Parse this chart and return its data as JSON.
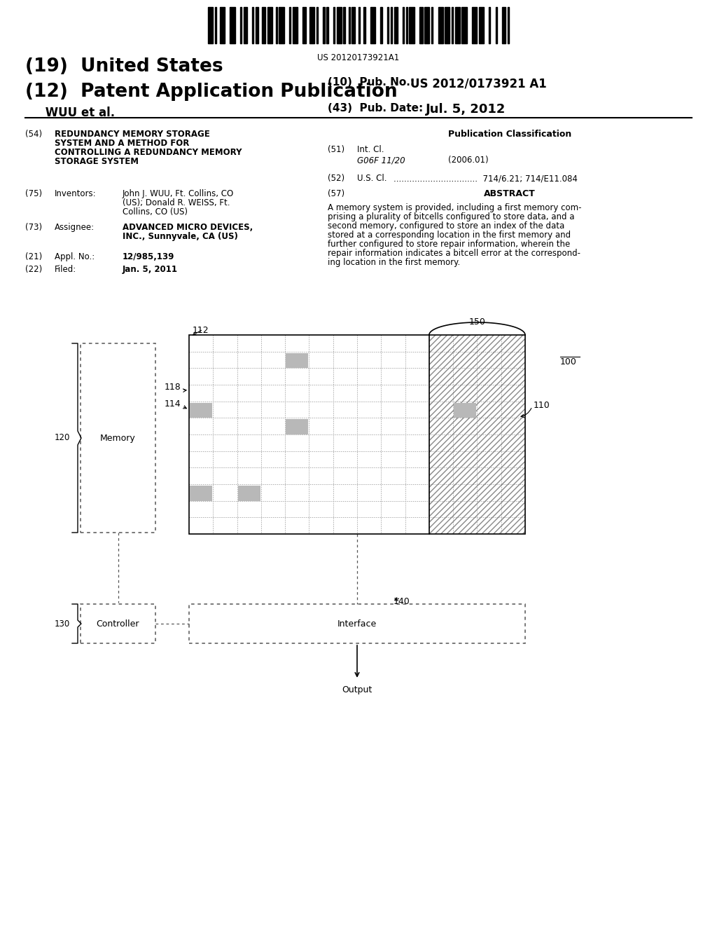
{
  "bg_color": "#ffffff",
  "barcode_text": "US 20120173921A1",
  "title_19": "(19)  United States",
  "title_12": "(12)  Patent Application Publication",
  "pub_no_label": "(10)  Pub. No.:",
  "pub_no_val": "US 2012/0173921 A1",
  "inventors_label": "     WUU et al.",
  "pub_date_label": "(43)  Pub. Date:",
  "pub_date_val": "Jul. 5, 2012",
  "field54_label": "(54)",
  "field54_lines": [
    "REDUNDANCY MEMORY STORAGE",
    "SYSTEM AND A METHOD FOR",
    "CONTROLLING A REDUNDANCY MEMORY",
    "STORAGE SYSTEM"
  ],
  "pub_class_title": "Publication Classification",
  "field51_label": "(51)",
  "field51_name": "Int. Cl.",
  "field51_code": "G06F 11/20",
  "field51_year": "(2006.01)",
  "field52_label": "(52)",
  "field52_name": "U.S. Cl.",
  "field52_dots": "................................",
  "field52_val": "714/6.21; 714/E11.084",
  "field57_label": "(57)",
  "field57_name": "ABSTRACT",
  "abstract_lines": [
    "A memory system is provided, including a first memory com-",
    "prising a plurality of bitcells configured to store data, and a",
    "second memory, configured to store an index of the data",
    "stored at a corresponding location in the first memory and",
    "further configured to store repair information, wherein the",
    "repair information indicates a bitcell error at the correspond-",
    "ing location in the first memory."
  ],
  "field75_label": "(75)",
  "field75_name": "Inventors:",
  "field75_lines": [
    "John J. WUU, Ft. Collins, CO",
    "(US); Donald R. WEISS, Ft.",
    "Collins, CO (US)"
  ],
  "field73_label": "(73)",
  "field73_name": "Assignee:",
  "field73_lines": [
    "ADVANCED MICRO DEVICES,",
    "INC., Sunnyvale, CA (US)"
  ],
  "field21_label": "(21)",
  "field21_name": "Appl. No.:",
  "field21_val": "12/985,139",
  "field22_label": "(22)",
  "field22_name": "Filed:",
  "field22_val": "Jan. 5, 2011",
  "diagram": {
    "label_100": "100",
    "label_110": "110",
    "label_112": "112",
    "label_114": "114",
    "label_118": "118",
    "label_120": "120",
    "label_130": "130",
    "label_140": "140",
    "label_150": "150",
    "memory_label": "Memory",
    "controller_label": "Controller",
    "interface_label": "Interface",
    "output_label": "Output"
  }
}
